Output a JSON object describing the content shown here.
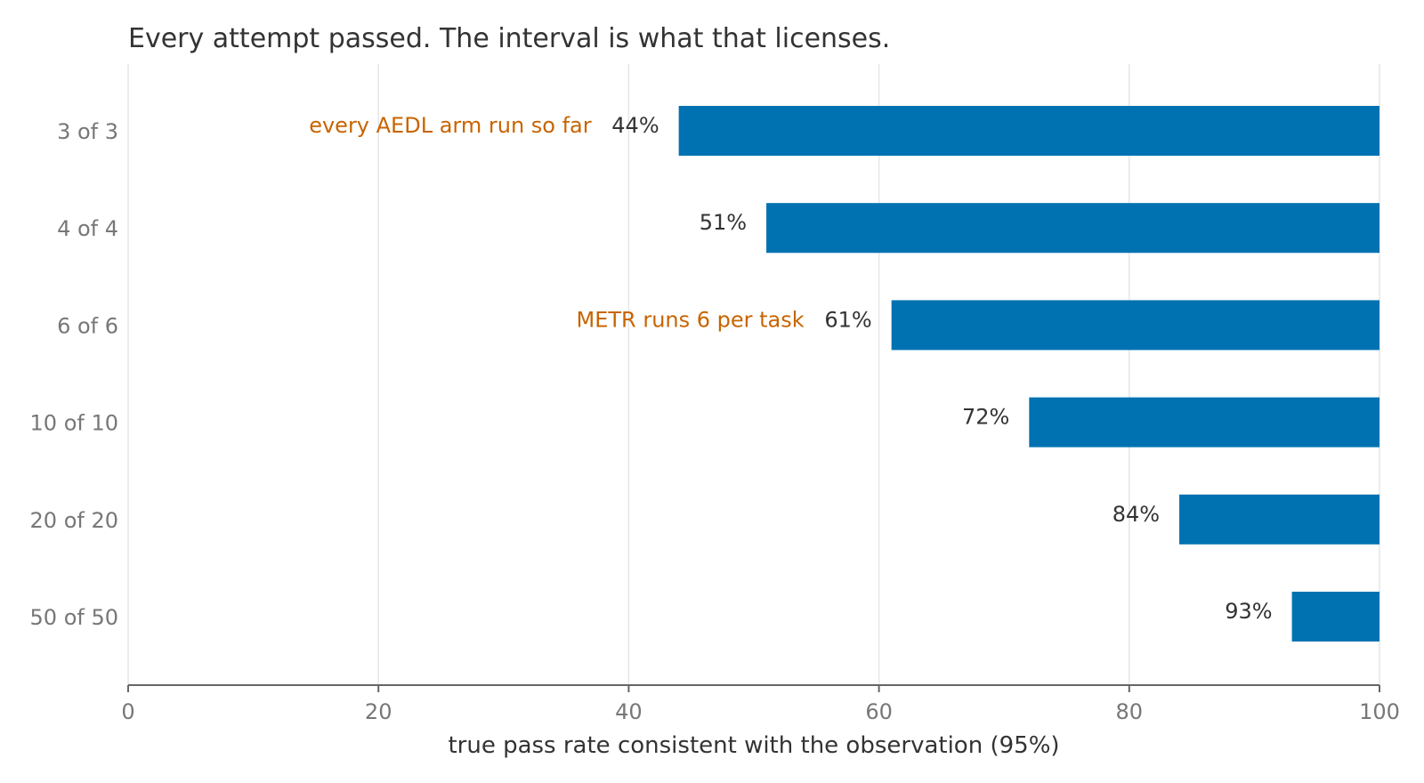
{
  "chart_data": {
    "type": "bar",
    "orientation": "horizontal",
    "title": "Every attempt passed. The interval is what that licenses.",
    "xlabel": "true pass rate consistent with the observation (95%)",
    "ylabel": "",
    "xlim": [
      0,
      100
    ],
    "xticks": [
      0,
      20,
      40,
      60,
      80,
      100
    ],
    "grid": "vertical",
    "categories": [
      "3 of 3",
      "4 of 4",
      "6 of 6",
      "10 of 10",
      "20 of 20",
      "50 of 50"
    ],
    "series": [
      {
        "lower": [
          44,
          51,
          61,
          72,
          84,
          93
        ],
        "upper": [
          100,
          100,
          100,
          100,
          100,
          100
        ],
        "labels": [
          "44%",
          "51%",
          "61%",
          "72%",
          "84%",
          "93%"
        ]
      }
    ],
    "annotations": [
      {
        "category": "3 of 3",
        "text": "every AEDL arm run so far"
      },
      {
        "category": "6 of 6",
        "text": "METR runs 6 per task"
      }
    ],
    "colors": {
      "bar": "#0072b2",
      "annotation": "#c86400"
    }
  }
}
